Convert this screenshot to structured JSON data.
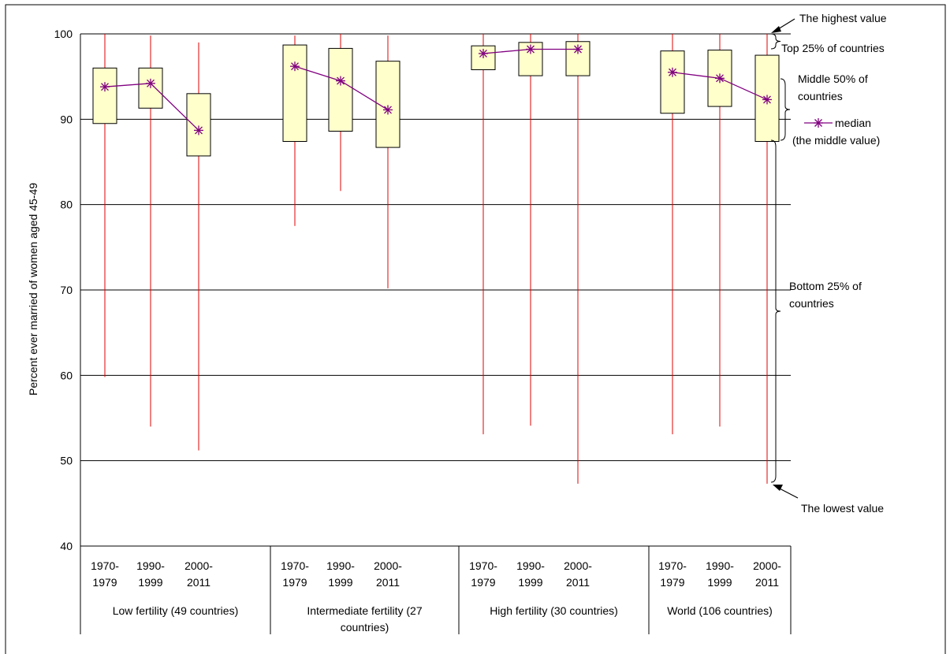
{
  "chart_data": {
    "type": "boxplot",
    "ylabel": "Percent ever married of women aged 45-49",
    "ylim": [
      40,
      100
    ],
    "yticks": [
      "40",
      "50",
      "60",
      "70",
      "80",
      "90",
      "100"
    ],
    "grid": true,
    "groups": [
      {
        "label_lines": [
          "Low fertility (49 countries)"
        ],
        "periods": [
          {
            "label_lines": [
              "1970-",
              "1979"
            ],
            "min": 59.8,
            "q1": 89.5,
            "median": 93.8,
            "q3": 96.0,
            "max": 100.0
          },
          {
            "label_lines": [
              "1990-",
              "1999"
            ],
            "min": 54.0,
            "q1": 91.3,
            "median": 94.2,
            "q3": 96.0,
            "max": 99.8
          },
          {
            "label_lines": [
              "2000-",
              "2011"
            ],
            "min": 51.2,
            "q1": 85.7,
            "median": 88.7,
            "q3": 93.0,
            "max": 99.0
          }
        ]
      },
      {
        "label_lines": [
          "Intermediate fertility (27",
          "countries)"
        ],
        "periods": [
          {
            "label_lines": [
              "1970-",
              "1979"
            ],
            "min": 77.5,
            "q1": 87.4,
            "median": 96.2,
            "q3": 98.7,
            "max": 99.8
          },
          {
            "label_lines": [
              "1990-",
              "1999"
            ],
            "min": 81.6,
            "q1": 88.6,
            "median": 94.5,
            "q3": 98.3,
            "max": 100.0
          },
          {
            "label_lines": [
              "2000-",
              "2011"
            ],
            "min": 70.2,
            "q1": 86.7,
            "median": 91.1,
            "q3": 96.8,
            "max": 99.8
          }
        ]
      },
      {
        "label_lines": [
          "High fertility (30 countries)"
        ],
        "periods": [
          {
            "label_lines": [
              "1970-",
              "1979"
            ],
            "min": 53.1,
            "q1": 95.8,
            "median": 97.7,
            "q3": 98.6,
            "max": 100.0
          },
          {
            "label_lines": [
              "1990-",
              "1999"
            ],
            "min": 54.1,
            "q1": 95.1,
            "median": 98.2,
            "q3": 99.0,
            "max": 100.0
          },
          {
            "label_lines": [
              "2000-",
              "2011"
            ],
            "min": 47.3,
            "q1": 95.1,
            "median": 98.2,
            "q3": 99.1,
            "max": 100.0
          }
        ]
      },
      {
        "label_lines": [
          "World (106 countries)"
        ],
        "periods": [
          {
            "label_lines": [
              "1970-",
              "1979"
            ],
            "min": 53.1,
            "q1": 90.7,
            "median": 95.5,
            "q3": 98.0,
            "max": 100.0
          },
          {
            "label_lines": [
              "1990-",
              "1999"
            ],
            "min": 54.0,
            "q1": 91.5,
            "median": 94.8,
            "q3": 98.1,
            "max": 100.0
          },
          {
            "label_lines": [
              "2000-",
              "2011"
            ],
            "min": 47.3,
            "q1": 87.4,
            "median": 92.3,
            "q3": 97.5,
            "max": 100.0
          }
        ]
      }
    ],
    "colors": {
      "box_fill": "#FFFFCC",
      "box_stroke": "#000000",
      "whisker": "#E00000",
      "median": "#800080",
      "grid": "#000000"
    },
    "legend": {
      "series_name": "median",
      "note": "(the middle value)",
      "placement": "right"
    },
    "annotations": {
      "highest": "The highest value",
      "top25": "Top 25% of countries",
      "middle50_lines": [
        "Middle 50% of",
        "countries"
      ],
      "bottom25_lines": [
        "Bottom 25% of",
        "countries"
      ],
      "lowest": "The lowest value"
    }
  }
}
